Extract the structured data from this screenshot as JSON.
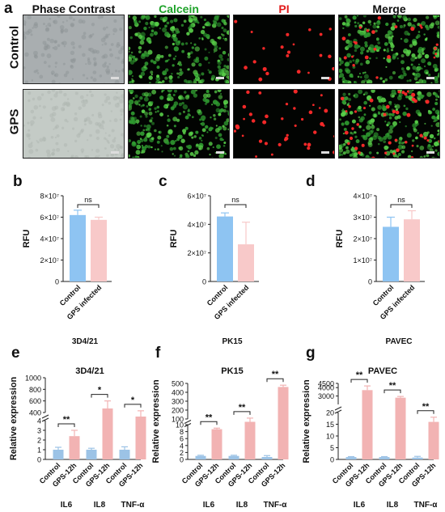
{
  "panel_a": {
    "label": "a",
    "columns": [
      {
        "title": "Phase Contrast",
        "color": "#111111"
      },
      {
        "title": "Calcein",
        "color": "#1fa32a"
      },
      {
        "title": "PI",
        "color": "#e21a1a"
      },
      {
        "title": "Merge",
        "color": "#111111"
      }
    ],
    "rows": [
      "Control",
      "GPS"
    ]
  },
  "chart_data": [
    {
      "panel": "b",
      "type": "bar",
      "caption": "3D4/21",
      "ylabel": "RFU",
      "yticks": [
        {
          "v": 0,
          "t": "0"
        },
        {
          "v": 20000000,
          "t": "2×10⁷"
        },
        {
          "v": 40000000,
          "t": "4×10⁷"
        },
        {
          "v": 60000000,
          "t": "6×10⁷"
        },
        {
          "v": 80000000,
          "t": "8×10⁷"
        }
      ],
      "ylim": [
        0,
        80000000
      ],
      "categories": [
        "Control",
        "GPS infected"
      ],
      "values": [
        62000000,
        57500000
      ],
      "errors": [
        4500000,
        2500000
      ],
      "colors": [
        "#8ec4f2",
        "#f8c9c9"
      ],
      "significance": "ns"
    },
    {
      "panel": "c",
      "type": "bar",
      "caption": "PK15",
      "ylabel": "RFU",
      "yticks": [
        {
          "v": 0,
          "t": "0"
        },
        {
          "v": 20000000,
          "t": "2×10⁷"
        },
        {
          "v": 40000000,
          "t": "4×10⁷"
        },
        {
          "v": 60000000,
          "t": "6×10⁷"
        }
      ],
      "ylim": [
        0,
        60000000
      ],
      "categories": [
        "Control",
        "GPS infected"
      ],
      "values": [
        45500000,
        26000000
      ],
      "errors": [
        2500000,
        15500000
      ],
      "colors": [
        "#8ec4f2",
        "#f8c9c9"
      ],
      "significance": "ns"
    },
    {
      "panel": "d",
      "type": "bar",
      "caption": "PAVEC",
      "ylabel": "RFU",
      "yticks": [
        {
          "v": 0,
          "t": "0"
        },
        {
          "v": 10000000,
          "t": "1×10⁷"
        },
        {
          "v": 20000000,
          "t": "2×10⁷"
        },
        {
          "v": 30000000,
          "t": "3×10⁷"
        },
        {
          "v": 40000000,
          "t": "4×10⁷"
        }
      ],
      "ylim": [
        0,
        40000000
      ],
      "categories": [
        "Control",
        "GPS infected"
      ],
      "values": [
        25500000,
        29000000
      ],
      "errors": [
        4500000,
        4000000
      ],
      "colors": [
        "#8ec4f2",
        "#f8c9c9"
      ],
      "significance": "ns"
    },
    {
      "panel": "e",
      "type": "bar",
      "title": "3D4/21",
      "ylabel": "Relative expression",
      "broken_axis": {
        "lower": [
          0,
          4
        ],
        "upper": [
          400,
          1000
        ]
      },
      "yticks": [
        "0",
        "1",
        "2",
        "3",
        "4",
        "400",
        "600",
        "800",
        "1000"
      ],
      "categories": [
        "Control",
        "GPS-12h",
        "Control",
        "GPS-12h",
        "Control",
        "GPS-12h"
      ],
      "groups": [
        "IL6",
        "IL8",
        "TNF-α"
      ],
      "values": [
        1.0,
        2.4,
        1.0,
        470,
        1.0,
        370
      ],
      "errors": [
        0.25,
        0.6,
        0.15,
        130,
        0.3,
        60
      ],
      "colors": [
        "#9cc3e6",
        "#f2b3b3"
      ],
      "significance": [
        "**",
        "*",
        "*"
      ]
    },
    {
      "panel": "f",
      "type": "bar",
      "title": "PK15",
      "ylabel": "Relative expression",
      "broken_axis": {
        "lower": [
          0,
          10
        ],
        "upper": [
          100,
          500
        ]
      },
      "yticks": [
        "0",
        "2",
        "4",
        "6",
        "8",
        "10",
        "100",
        "200",
        "300",
        "400",
        "500"
      ],
      "categories": [
        "Control",
        "GPS-12h",
        "Control",
        "GPS-12h",
        "Control",
        "GPS-12h"
      ],
      "groups": [
        "IL6",
        "IL8",
        "TNF-α"
      ],
      "values": [
        1.0,
        8.7,
        1.0,
        95,
        0.7,
        460
      ],
      "errors": [
        0.2,
        0.3,
        0.2,
        15,
        0.4,
        20
      ],
      "colors": [
        "#9cc3e6",
        "#f2b3b3"
      ],
      "significance": [
        "**",
        "**",
        "**"
      ]
    },
    {
      "panel": "g",
      "type": "bar",
      "title": "PAVEC",
      "ylabel": "Relative expression",
      "broken_axis": {
        "lower": [
          0,
          20
        ],
        "upper": [
          2000,
          4500
        ]
      },
      "yticks": [
        "0",
        "5",
        "10",
        "15",
        "20",
        "2000",
        "3000",
        "4000",
        "4500"
      ],
      "categories": [
        "Control",
        "GPS-12h",
        "Control",
        "GPS-12h",
        "Control",
        "GPS-12h"
      ],
      "groups": [
        "IL6",
        "IL8",
        "TNF-α"
      ],
      "values": [
        1.0,
        3700,
        1.0,
        2800,
        0.8,
        16
      ],
      "errors": [
        0.2,
        500,
        0.2,
        150,
        0.5,
        2
      ],
      "colors": [
        "#9cc3e6",
        "#f2b3b3"
      ],
      "significance": [
        "**",
        "**",
        "**"
      ]
    }
  ]
}
